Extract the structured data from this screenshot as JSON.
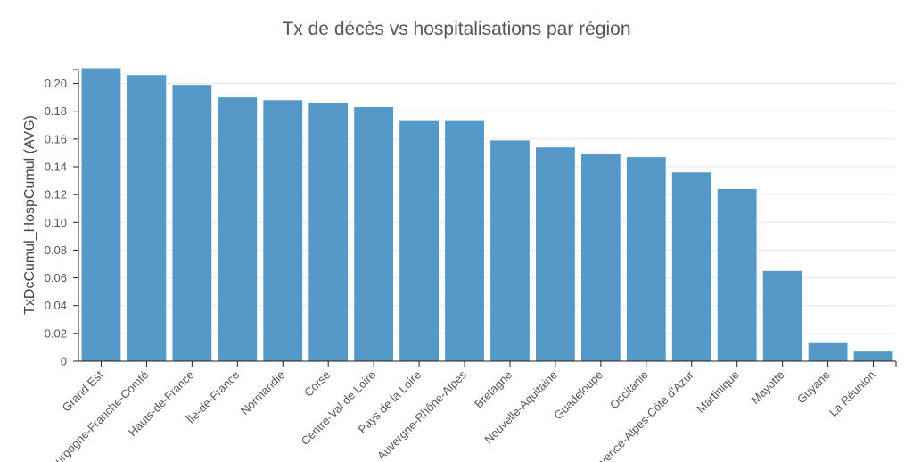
{
  "chart_data": {
    "type": "bar",
    "title": "Tx de décès vs hospitalisations par région",
    "xlabel": "",
    "ylabel": "TxDcCumul_HospCumul (AVG)",
    "ylim": [
      0,
      0.21
    ],
    "yticks": [
      "0",
      "0.02",
      "0.04",
      "0.06",
      "0.08",
      "0.10",
      "0.12",
      "0.14",
      "0.16",
      "0.18",
      "0.20"
    ],
    "grid": true,
    "bar_color": "#5499c7",
    "categories": [
      "Grand Est",
      "Bourgogne-Franche-Comté",
      "Hauts-de-France",
      "Île-de-France",
      "Normandie",
      "Corse",
      "Centre-Val de Loire",
      "Pays de la Loire",
      "Auvergne-Rhône-Alpes",
      "Bretagne",
      "Nouvelle-Aquitaine",
      "Guadeloupe",
      "Occitanie",
      "Provence-Alpes-Côte d'Azur",
      "Martinique",
      "Mayotte",
      "Guyane",
      "La Réunion"
    ],
    "values": [
      0.211,
      0.206,
      0.199,
      0.19,
      0.188,
      0.186,
      0.183,
      0.173,
      0.173,
      0.159,
      0.154,
      0.149,
      0.147,
      0.136,
      0.124,
      0.065,
      0.013,
      0.007
    ]
  }
}
